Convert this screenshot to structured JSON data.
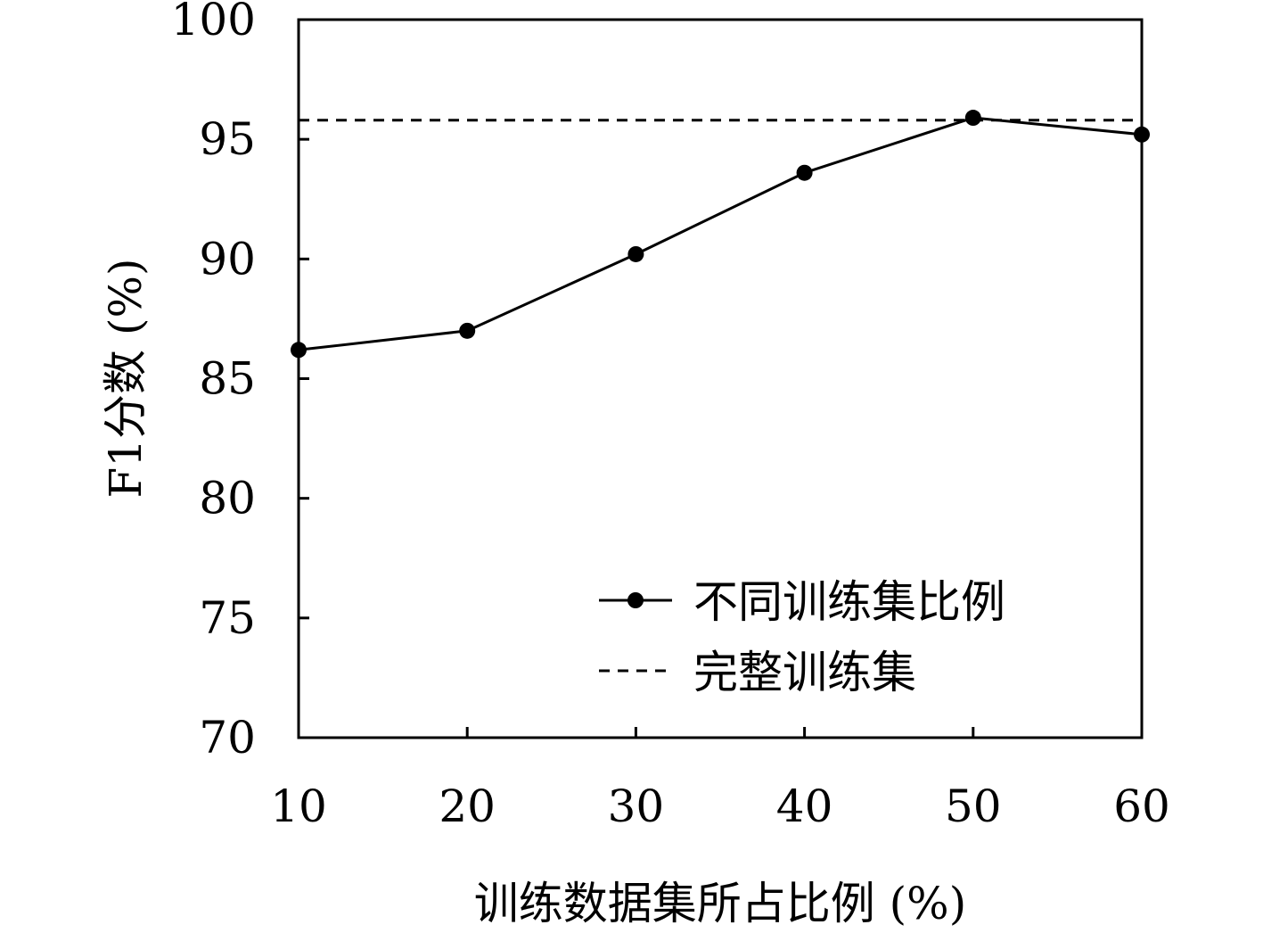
{
  "chart_data": {
    "type": "line",
    "xlabel": "训练数据集所占比例 (%)",
    "ylabel": "F1分数 (%)",
    "xlim": [
      10,
      60
    ],
    "ylim": [
      70,
      100
    ],
    "xticks": [
      "10",
      "20",
      "30",
      "40",
      "50",
      "60"
    ],
    "yticks": [
      "70",
      "75",
      "80",
      "85",
      "90",
      "95",
      "100"
    ],
    "grid": false,
    "legend_position": "bottom-right",
    "series": [
      {
        "name": "不同训练集比例",
        "style": "solid-with-markers",
        "color": "#000000",
        "x": [
          10,
          20,
          30,
          40,
          50,
          60
        ],
        "y": [
          86.2,
          87.0,
          90.2,
          93.6,
          95.9,
          95.2
        ]
      },
      {
        "name": "完整训练集",
        "style": "dashed",
        "color": "#000000",
        "x": [
          10,
          60
        ],
        "y": [
          95.8,
          95.8
        ]
      }
    ]
  }
}
